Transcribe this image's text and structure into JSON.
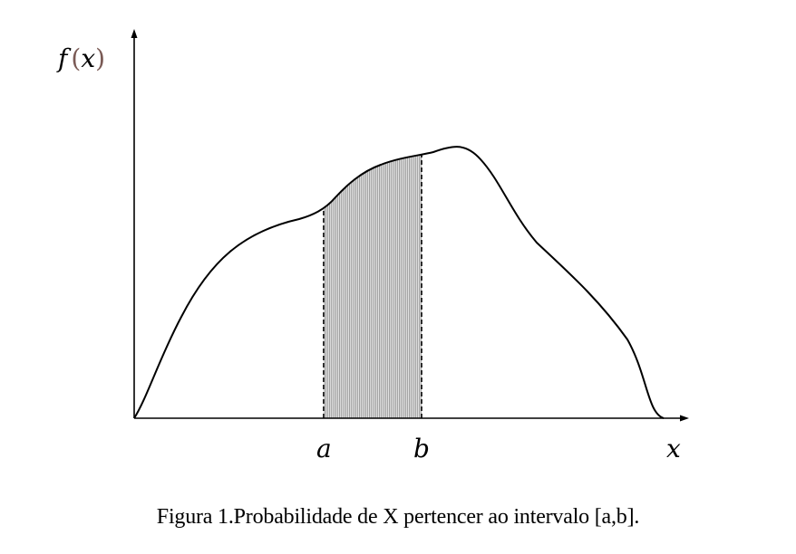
{
  "figure": {
    "y_axis_label": {
      "f": "f",
      "open_paren": "(",
      "x": "x",
      "close_paren": ")"
    },
    "x_axis_label": "x",
    "interval": {
      "a_label": "a",
      "b_label": "b"
    },
    "caption": "Figura 1.Probabilidade de X pertencer ao intervalo [a,b].",
    "colors": {
      "curve": "#000000",
      "shading": "#bdbdbd",
      "axes": "#000000"
    }
  }
}
